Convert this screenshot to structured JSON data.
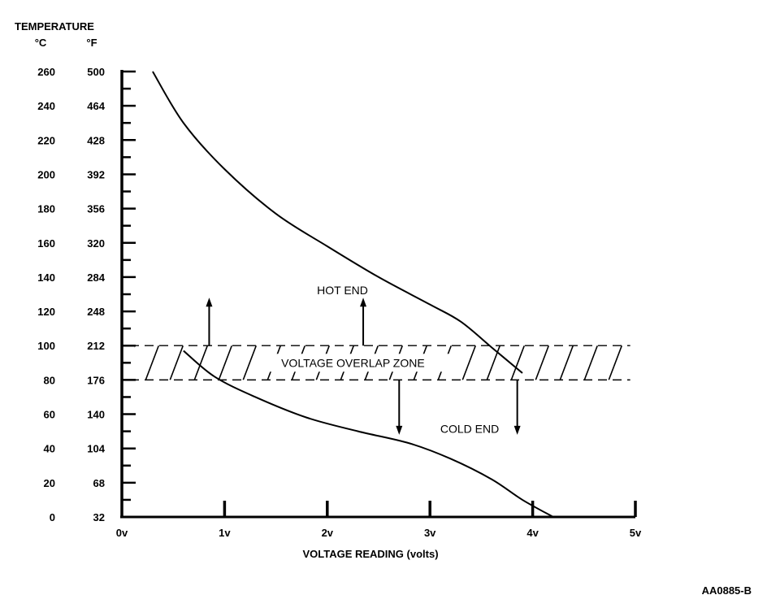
{
  "header": {
    "line1": "TEMPERATURE",
    "unit_c": "°C",
    "unit_f": "°F"
  },
  "figure_id": "AA0885-B",
  "chart_data": {
    "type": "line",
    "title": "",
    "xlabel": "VOLTAGE READING (volts)",
    "ylabel": "TEMPERATURE",
    "xlim": [
      0,
      5
    ],
    "ylim_c": [
      0,
      260
    ],
    "x_ticks": [
      0,
      1,
      2,
      3,
      4,
      5
    ],
    "x_tick_labels": [
      "0v",
      "1v",
      "2v",
      "3v",
      "4v",
      "5v"
    ],
    "y_ticks_c": [
      0,
      20,
      40,
      60,
      80,
      100,
      120,
      140,
      160,
      180,
      200,
      220,
      240,
      260
    ],
    "y_tick_labels_c": [
      "0",
      "20",
      "40",
      "60",
      "80",
      "100",
      "120",
      "140",
      "160",
      "180",
      "200",
      "220",
      "240",
      "260"
    ],
    "y_tick_labels_f": [
      "32",
      "68",
      "104",
      "140",
      "176",
      "212",
      "248",
      "284",
      "320",
      "356",
      "392",
      "428",
      "464",
      "500"
    ],
    "grid": false,
    "series": [
      {
        "points": [
          [
            0.3,
            260
          ],
          [
            0.6,
            230
          ],
          [
            1.0,
            203
          ],
          [
            1.5,
            177
          ],
          [
            2.0,
            158
          ],
          [
            2.5,
            140
          ],
          [
            3.0,
            124
          ],
          [
            3.3,
            114
          ],
          [
            3.6,
            99
          ],
          [
            3.9,
            84
          ]
        ]
      },
      {
        "points": [
          [
            0.6,
            97
          ],
          [
            0.9,
            82
          ],
          [
            1.3,
            70
          ],
          [
            1.8,
            58
          ],
          [
            2.3,
            50
          ],
          [
            2.8,
            43
          ],
          [
            3.2,
            34
          ],
          [
            3.6,
            22
          ],
          [
            3.9,
            10
          ],
          [
            4.2,
            0
          ]
        ]
      }
    ],
    "zone": {
      "label": "VOLTAGE OVERLAP ZONE",
      "y_from_c": 80,
      "y_to_c": 100,
      "x_from": 0.2,
      "x_to": 4.95
    },
    "annotations": [
      {
        "text": "HOT END",
        "x": 1.9,
        "y": 130
      },
      {
        "text": "COLD END",
        "x": 3.1,
        "y": 49
      }
    ],
    "arrows": [
      {
        "x": 0.85,
        "from": 100,
        "to": 128
      },
      {
        "x": 2.35,
        "from": 100,
        "to": 128
      },
      {
        "x": 2.7,
        "from": 80,
        "to": 48
      },
      {
        "x": 3.85,
        "from": 80,
        "to": 48
      }
    ]
  }
}
